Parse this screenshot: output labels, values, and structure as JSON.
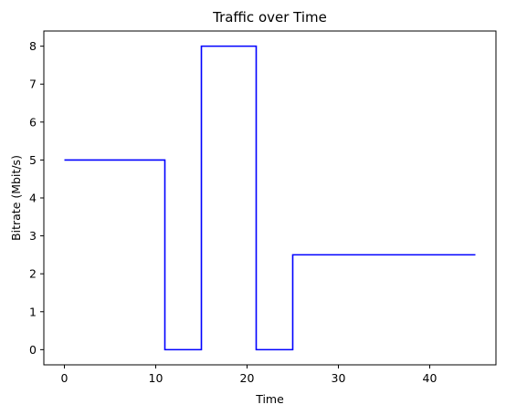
{
  "chart_data": {
    "type": "line",
    "step": "post",
    "title": "Traffic over Time",
    "xlabel": "Time",
    "ylabel": "Bitrate (Mbit/s)",
    "xlim": [
      -2.25,
      47.25
    ],
    "ylim": [
      -0.4,
      8.4
    ],
    "xticks": [
      0,
      10,
      20,
      30,
      40
    ],
    "yticks": [
      0,
      1,
      2,
      3,
      4,
      5,
      6,
      7,
      8
    ],
    "grid": false,
    "series": [
      {
        "color": "#0000ff",
        "x": [
          0,
          11,
          15,
          21,
          25,
          45
        ],
        "y": [
          5,
          0,
          8,
          0,
          2.5,
          2.5
        ]
      }
    ]
  }
}
